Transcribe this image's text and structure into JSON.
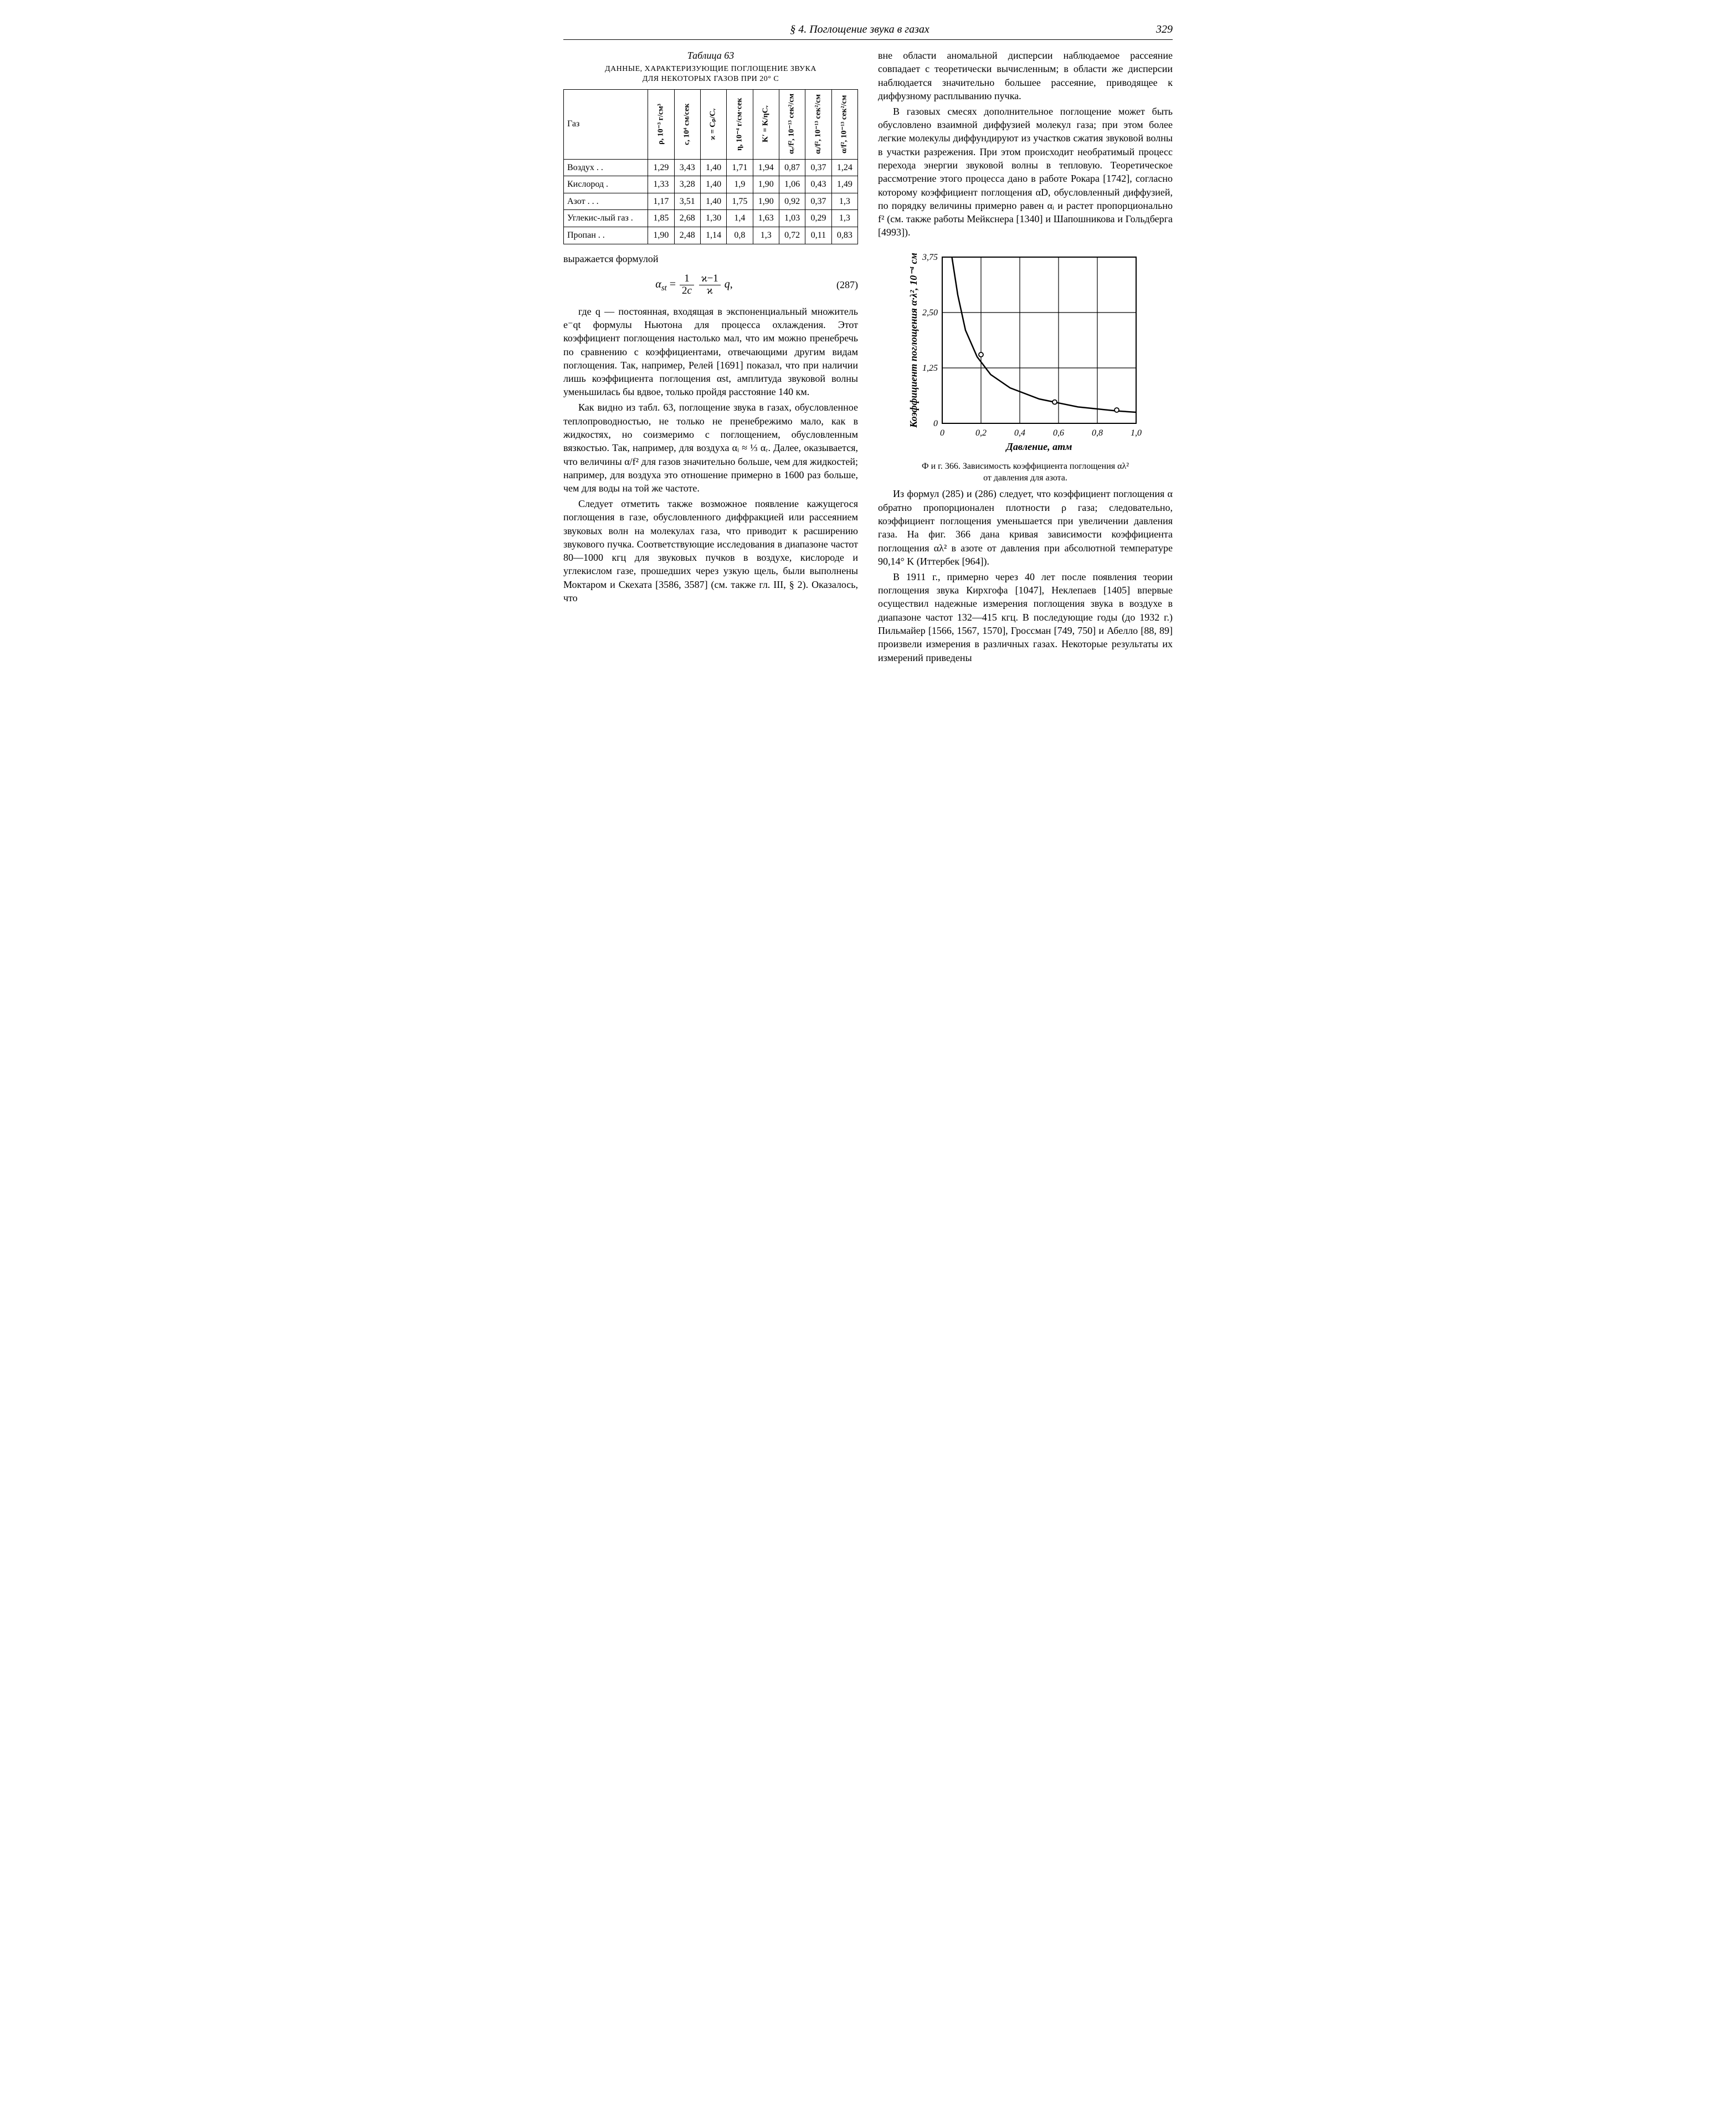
{
  "header": {
    "section": "§ 4. Поглощение звука в газах",
    "page_number": "329"
  },
  "table": {
    "id": "63",
    "caption": "Таблица 63",
    "title_line1": "ДАННЫЕ, ХАРАКТЕРИЗУЮЩИЕ ПОГЛОЩЕНИЕ ЗВУКА",
    "title_line2": "ДЛЯ НЕКОТОРЫХ ГАЗОВ ПРИ 20° С",
    "row_header": "Газ",
    "col_headers": [
      "ρ, 10⁻³ г/см³",
      "c, 10⁴ см/сек",
      "ϰ = Cₚ/Cᵥ",
      "η, 10⁻⁴ г/см·сек",
      "K′ = K/ηCᵥ",
      "αᵣ/f², 10⁻¹³ сек²/см",
      "αᵢ/f², 10⁻¹³ сек²/см",
      "α/f², 10⁻¹³ сек²/см"
    ],
    "rows": [
      {
        "name": "Воздух . .",
        "cells": [
          "1,29",
          "3,43",
          "1,40",
          "1,71",
          "1,94",
          "0,87",
          "0,37",
          "1,24"
        ]
      },
      {
        "name": "Кислород .",
        "cells": [
          "1,33",
          "3,28",
          "1,40",
          "1,9",
          "1,90",
          "1,06",
          "0,43",
          "1,49"
        ]
      },
      {
        "name": "Азот . . .",
        "cells": [
          "1,17",
          "3,51",
          "1,40",
          "1,75",
          "1,90",
          "0,92",
          "0,37",
          "1,3"
        ]
      },
      {
        "name": "Углекис-лый газ .",
        "cells": [
          "1,85",
          "2,68",
          "1,30",
          "1,4",
          "1,63",
          "1,03",
          "0,29",
          "1,3"
        ]
      },
      {
        "name": "Пропан . .",
        "cells": [
          "1,90",
          "2,48",
          "1,14",
          "0,8",
          "1,3",
          "0,72",
          "0,11",
          "0,83"
        ]
      }
    ]
  },
  "formula": {
    "number": "(287)",
    "lhs": "αst",
    "rhs_text": "= (1 / 2c) · (ϰ−1)/ϰ · q,"
  },
  "left_column_text": {
    "p0": "выражается формулой",
    "p1": "где q — постоянная, входящая в экспоненциальный множитель e⁻qt формулы Ньютона для процесса охлаждения. Этот коэффициент поглощения настолько мал, что им можно пренебречь по сравнению с коэффициентами, отвечающими другим видам поглощения. Так, например, Релей [1691] показал, что при наличии лишь коэффициента поглощения αst, амплитуда звуковой волны уменьшилась бы вдвое, только пройдя расстояние 140 км.",
    "p2": "Как видно из табл. 63, поглощение звука в газах, обусловленное теплопроводностью, не только не пренебрежимо мало, как в жидкостях, но соизмеримо с поглощением, обусловленным вязкостью. Так, например, для воздуха αᵢ ≈ ⅓ αᵣ. Далее, оказывается, что величины α/f² для газов значительно больше, чем для жидкостей; например, для воздуха это отношение примерно в 1600 раз больше, чем для воды на той же частоте.",
    "p3": "Следует отметить также возможное появление кажущегося поглощения в газе, обусловленного диффракцией или рассеянием звуковых волн на молекулах газа, что приводит к расширению звукового пучка. Соответствующие исследования в диапазоне частот 80—1000 кгц для звуковых пучков в воздухе, кислороде и углекислом газе, прошедших через узкую щель, были выполнены Моктаром и Скехата [3586, 3587] (см. также гл. III, § 2). Оказалось, что"
  },
  "right_column_text": {
    "r1": "вне области аномальной дисперсии наблюдаемое рассеяние совпадает с теоретически вычисленным; в области же дисперсии наблюдается значительно большее рассеяние, приводящее к диффузному расплыванию пучка.",
    "r2": "В газовых смесях дополнительное поглощение может быть обусловлено взаимной диффузией молекул газа; при этом более легкие молекулы диффундируют из участков сжатия звуковой волны в участки разрежения. При этом происходит необратимый процесс перехода энергии звуковой волны в тепловую. Теоретическое рассмотрение этого процесса дано в работе Рокара [1742], согласно которому коэффициент поглощения αD, обусловленный диффузией, по порядку величины примерно равен αᵢ и растет пропорционально f² (см. также работы Мейкснера [1340] и Шапошникова и Гольдберга [4993]).",
    "r3": "Из формул (285) и (286) следует, что коэффициент поглощения α обратно пропорционален плотности ρ газа; следовательно, коэффициент поглощения уменьшается при увеличении давления газа. На фиг. 366 дана кривая зависимости коэффициента поглощения αλ² в азоте от давления при абсолютной температуре 90,14° K (Иттербек [964]).",
    "r4": "В 1911 г., примерно через 40 лет после появления теории поглощения звука Кирхгофа [1047], Неклепаев [1405] впервые осуществил надежные измерения поглощения звука в воздухе в диапазоне частот 132—415 кгц. В последующие годы (до 1932 г.) Пильмайер [1566, 1567, 1570], Гроссман [749, 750] и Абелло [88, 89] произвели измерения в различных газах. Некоторые результаты их измерений приведены"
  },
  "figure": {
    "number": "366",
    "caption_line1": "Ф и г. 366. Зависимость коэффициента поглощения αλ²",
    "caption_line2": "от давления для азота.",
    "x_label": "Давление, атм",
    "y_label": "Коэффициент поглощения α·λ², 10⁻⁴ см",
    "xlim": [
      0,
      1.0
    ],
    "ylim": [
      0,
      3.75
    ],
    "xticks": [
      0,
      0.2,
      0.4,
      0.6,
      0.8,
      1.0
    ],
    "xtick_labels": [
      "0",
      "0,2",
      "0,4",
      "0,6",
      "0,8",
      "1,0"
    ],
    "yticks": [
      0,
      1.25,
      2.5,
      3.75
    ],
    "ytick_labels": [
      "0",
      "1,25",
      "2,50",
      "3,75"
    ],
    "curve_points": [
      [
        0.05,
        3.75
      ],
      [
        0.08,
        2.9
      ],
      [
        0.12,
        2.1
      ],
      [
        0.18,
        1.5
      ],
      [
        0.25,
        1.1
      ],
      [
        0.35,
        0.8
      ],
      [
        0.5,
        0.55
      ],
      [
        0.7,
        0.37
      ],
      [
        0.9,
        0.28
      ],
      [
        1.0,
        0.25
      ]
    ],
    "data_points": [
      [
        0.2,
        1.55
      ],
      [
        0.58,
        0.48
      ],
      [
        0.9,
        0.3
      ]
    ],
    "colors": {
      "axis": "#000000",
      "curve": "#000000",
      "marker_fill": "#ffffff",
      "marker_stroke": "#000000",
      "background": "#ffffff"
    },
    "marker_radius": 4,
    "line_width": 2.5,
    "font_family": "Times New Roman",
    "tick_fontsize": 16,
    "label_fontsize": 18
  }
}
